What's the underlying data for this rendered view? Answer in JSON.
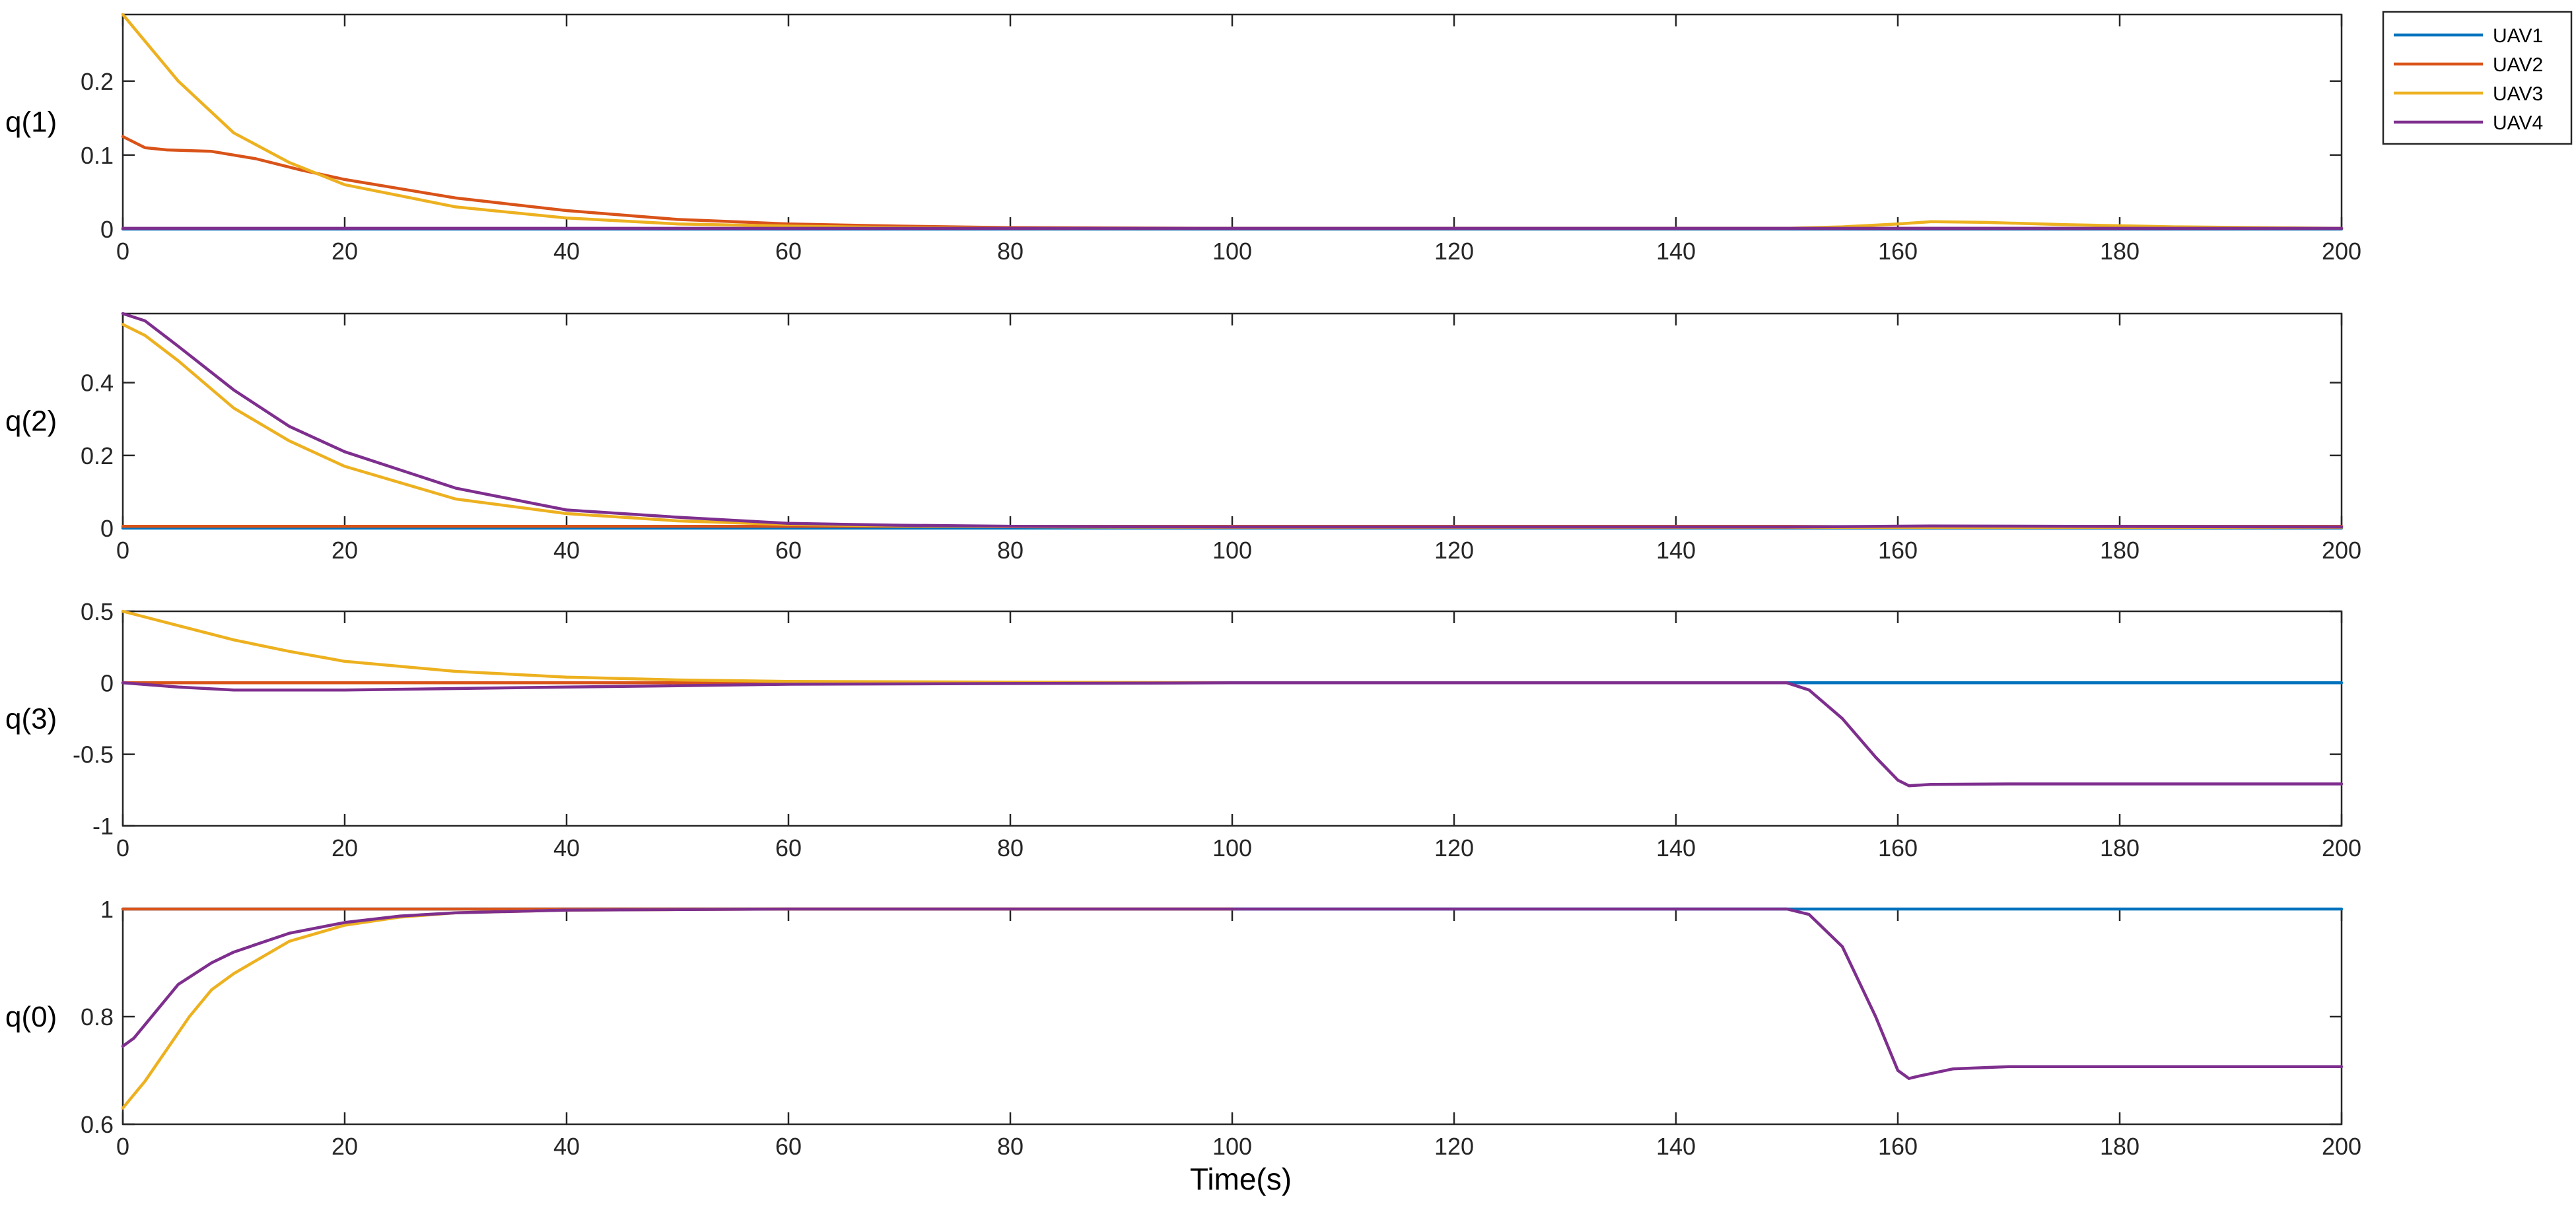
{
  "chart_data": [
    {
      "type": "line",
      "ylabel": "q(1)",
      "xlim": [
        0,
        200
      ],
      "ylim": [
        0,
        0.29
      ],
      "yticks": [
        0,
        0.1,
        0.2
      ],
      "ytick_labels": [
        "0",
        "0.1",
        "0.2"
      ],
      "xticks": [
        0,
        20,
        40,
        60,
        80,
        100,
        120,
        140,
        160,
        180,
        200
      ],
      "xtick_labels": [
        "0",
        "20",
        "40",
        "60",
        "80",
        "100",
        "120",
        "140",
        "160",
        "180",
        "200"
      ],
      "series": [
        {
          "name": "UAV1",
          "x": [
            0,
            200
          ],
          "values": [
            0,
            0
          ]
        },
        {
          "name": "UAV2",
          "x": [
            0,
            2,
            4,
            8,
            12,
            16,
            20,
            30,
            40,
            50,
            60,
            70,
            80,
            100,
            150,
            200
          ],
          "values": [
            0.125,
            0.11,
            0.107,
            0.105,
            0.095,
            0.08,
            0.067,
            0.042,
            0.025,
            0.013,
            0.007,
            0.004,
            0.002,
            0.001,
            0.001,
            0.001
          ]
        },
        {
          "name": "UAV3",
          "x": [
            0,
            5,
            10,
            15,
            20,
            30,
            40,
            50,
            60,
            70,
            80,
            100,
            150,
            155,
            160,
            163,
            168,
            175,
            185,
            200
          ],
          "values": [
            0.29,
            0.2,
            0.13,
            0.09,
            0.06,
            0.03,
            0.015,
            0.007,
            0.004,
            0.002,
            0.001,
            0.001,
            0.001,
            0.003,
            0.007,
            0.01,
            0.009,
            0.006,
            0.003,
            0.001
          ]
        },
        {
          "name": "UAV4",
          "x": [
            0,
            200
          ],
          "values": [
            0.001,
            0.001
          ]
        }
      ]
    },
    {
      "type": "line",
      "ylabel": "q(2)",
      "xlim": [
        0,
        200
      ],
      "ylim": [
        0,
        0.59
      ],
      "yticks": [
        0,
        0.2,
        0.4
      ],
      "ytick_labels": [
        "0",
        "0.2",
        "0.4"
      ],
      "xticks": [
        0,
        20,
        40,
        60,
        80,
        100,
        120,
        140,
        160,
        180,
        200
      ],
      "xtick_labels": [
        "0",
        "20",
        "40",
        "60",
        "80",
        "100",
        "120",
        "140",
        "160",
        "180",
        "200"
      ],
      "series": [
        {
          "name": "UAV1",
          "x": [
            0,
            200
          ],
          "values": [
            0,
            0
          ]
        },
        {
          "name": "UAV2",
          "x": [
            0,
            150,
            160,
            163,
            200
          ],
          "values": [
            0.005,
            0.005,
            0.003,
            0.005,
            0.005
          ]
        },
        {
          "name": "UAV3",
          "x": [
            0,
            2,
            5,
            10,
            15,
            20,
            30,
            40,
            50,
            60,
            70,
            80,
            100,
            200
          ],
          "values": [
            0.56,
            0.53,
            0.46,
            0.33,
            0.24,
            0.17,
            0.08,
            0.04,
            0.02,
            0.01,
            0.006,
            0.004,
            0.002,
            0.002
          ]
        },
        {
          "name": "UAV4",
          "x": [
            0,
            2,
            5,
            10,
            15,
            20,
            30,
            40,
            50,
            60,
            70,
            80,
            100,
            150,
            163,
            200
          ],
          "values": [
            0.59,
            0.57,
            0.5,
            0.38,
            0.28,
            0.21,
            0.11,
            0.05,
            0.03,
            0.013,
            0.008,
            0.005,
            0.003,
            0.003,
            0.006,
            0.003
          ]
        }
      ]
    },
    {
      "type": "line",
      "ylabel": "q(3)",
      "xlim": [
        0,
        200
      ],
      "ylim": [
        -1,
        0.5
      ],
      "yticks": [
        -1,
        -0.5,
        0,
        0.5
      ],
      "ytick_labels": [
        "-1",
        "-0.5",
        "0",
        "0.5"
      ],
      "xticks": [
        0,
        20,
        40,
        60,
        80,
        100,
        120,
        140,
        160,
        180,
        200
      ],
      "xtick_labels": [
        "0",
        "20",
        "40",
        "60",
        "80",
        "100",
        "120",
        "140",
        "160",
        "180",
        "200"
      ],
      "series": [
        {
          "name": "UAV1",
          "x": [
            0,
            200
          ],
          "values": [
            0,
            0
          ]
        },
        {
          "name": "UAV2",
          "x": [
            0,
            100
          ],
          "values": [
            0,
            0
          ]
        },
        {
          "name": "UAV3",
          "x": [
            0,
            5,
            10,
            15,
            20,
            30,
            40,
            50,
            60,
            80,
            100
          ],
          "values": [
            0.5,
            0.4,
            0.3,
            0.22,
            0.15,
            0.08,
            0.04,
            0.02,
            0.01,
            0.005,
            0
          ]
        },
        {
          "name": "UAV4",
          "x": [
            0,
            5,
            10,
            20,
            30,
            40,
            50,
            60,
            80,
            100,
            150,
            152,
            155,
            158,
            160,
            161,
            163,
            170,
            180,
            200
          ],
          "values": [
            0,
            -0.03,
            -0.05,
            -0.05,
            -0.04,
            -0.03,
            -0.02,
            -0.01,
            -0.005,
            0,
            0,
            -0.05,
            -0.25,
            -0.52,
            -0.68,
            -0.72,
            -0.71,
            -0.707,
            -0.707,
            -0.707
          ]
        }
      ]
    },
    {
      "type": "line",
      "ylabel": "q(0)",
      "xlim": [
        0,
        200
      ],
      "ylim": [
        0.6,
        1
      ],
      "yticks": [
        0.6,
        0.8,
        1
      ],
      "ytick_labels": [
        "0.6",
        "0.8",
        "1"
      ],
      "xticks": [
        0,
        20,
        40,
        60,
        80,
        100,
        120,
        140,
        160,
        180,
        200
      ],
      "xtick_labels": [
        "0",
        "20",
        "40",
        "60",
        "80",
        "100",
        "120",
        "140",
        "160",
        "180",
        "200"
      ],
      "xlabel": "Time(s)",
      "series": [
        {
          "name": "UAV1",
          "x": [
            0,
            200
          ],
          "values": [
            1,
            1
          ]
        },
        {
          "name": "UAV2",
          "x": [
            0,
            100
          ],
          "values": [
            1,
            1
          ]
        },
        {
          "name": "UAV3",
          "x": [
            0,
            2,
            4,
            6,
            8,
            10,
            15,
            20,
            25,
            30,
            40,
            50,
            60,
            100
          ],
          "values": [
            0.63,
            0.68,
            0.74,
            0.8,
            0.85,
            0.88,
            0.94,
            0.97,
            0.985,
            0.993,
            0.998,
            0.999,
            1,
            1
          ]
        },
        {
          "name": "UAV4",
          "x": [
            0,
            1,
            3,
            5,
            8,
            10,
            15,
            20,
            25,
            30,
            40,
            60,
            100,
            150,
            152,
            155,
            158,
            160,
            161,
            162,
            165,
            170,
            180,
            200
          ],
          "values": [
            0.745,
            0.76,
            0.81,
            0.86,
            0.9,
            0.92,
            0.955,
            0.975,
            0.987,
            0.993,
            0.998,
            1,
            1,
            1,
            0.99,
            0.93,
            0.8,
            0.7,
            0.685,
            0.69,
            0.703,
            0.707,
            0.707,
            0.707
          ]
        }
      ]
    }
  ],
  "legend": {
    "placement": "top-right outside",
    "entries": [
      {
        "label": "UAV1",
        "color": "#0072BD"
      },
      {
        "label": "UAV2",
        "color": "#D95319"
      },
      {
        "label": "UAV3",
        "color": "#EDB120"
      },
      {
        "label": "UAV4",
        "color": "#7E2F8E"
      }
    ]
  }
}
